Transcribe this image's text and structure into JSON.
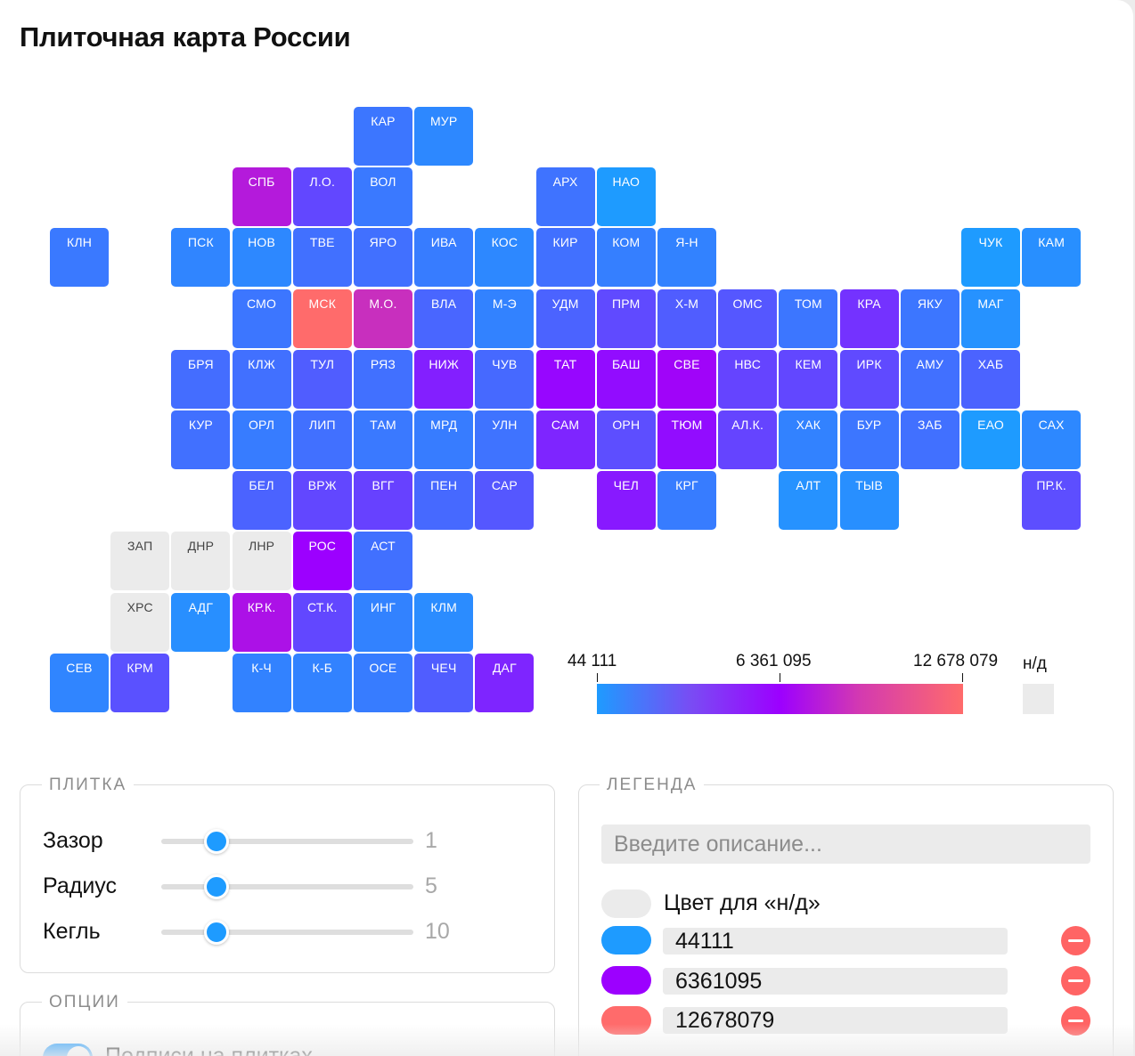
{
  "title": "Плиточная карта России",
  "scale": {
    "min_label": "44 111",
    "mid_label": "6 361 095",
    "max_label": "12 678 079",
    "nd_label": "н/д"
  },
  "colors": {
    "low": "#1e9bff",
    "mid": "#9c00ff",
    "high": "#ff6b6b",
    "nd": "#ebebeb"
  },
  "tiles": [
    {
      "label": "КАР",
      "col": 5,
      "row": 0,
      "t": 0.12
    },
    {
      "label": "МУР",
      "col": 6,
      "row": 0,
      "t": 0.06
    },
    {
      "label": "СПБ",
      "col": 3,
      "row": 1,
      "t": 0.62
    },
    {
      "label": "Л.О.",
      "col": 4,
      "row": 1,
      "t": 0.27
    },
    {
      "label": "ВОЛ",
      "col": 5,
      "row": 1,
      "t": 0.11
    },
    {
      "label": "АРХ",
      "col": 8,
      "row": 1,
      "t": 0.13
    },
    {
      "label": "НАО",
      "col": 9,
      "row": 1,
      "t": 0.0
    },
    {
      "label": "КЛН",
      "col": 0,
      "row": 2,
      "t": 0.11
    },
    {
      "label": "ПСК",
      "col": 2,
      "row": 2,
      "t": 0.07
    },
    {
      "label": "НОВ",
      "col": 3,
      "row": 2,
      "t": 0.06
    },
    {
      "label": "ТВЕ",
      "col": 4,
      "row": 2,
      "t": 0.14
    },
    {
      "label": "ЯРО",
      "col": 5,
      "row": 2,
      "t": 0.14
    },
    {
      "label": "ИВА",
      "col": 6,
      "row": 2,
      "t": 0.1
    },
    {
      "label": "КОС",
      "col": 7,
      "row": 2,
      "t": 0.06
    },
    {
      "label": "КИР",
      "col": 8,
      "row": 2,
      "t": 0.14
    },
    {
      "label": "КОМ",
      "col": 9,
      "row": 2,
      "t": 0.09
    },
    {
      "label": "Я-Н",
      "col": 10,
      "row": 2,
      "t": 0.08
    },
    {
      "label": "ЧУК",
      "col": 15,
      "row": 2,
      "t": 0.0
    },
    {
      "label": "КАМ",
      "col": 16,
      "row": 2,
      "t": 0.04
    },
    {
      "label": "СМО",
      "col": 3,
      "row": 3,
      "t": 0.12
    },
    {
      "label": "МСК",
      "col": 4,
      "row": 3,
      "t": 1.0
    },
    {
      "label": "М.О.",
      "col": 5,
      "row": 3,
      "t": 0.72
    },
    {
      "label": "ВЛА",
      "col": 6,
      "row": 3,
      "t": 0.17
    },
    {
      "label": "М-Э",
      "col": 7,
      "row": 3,
      "t": 0.08
    },
    {
      "label": "УДМ",
      "col": 8,
      "row": 3,
      "t": 0.18
    },
    {
      "label": "ПРМ",
      "col": 9,
      "row": 3,
      "t": 0.26
    },
    {
      "label": "Х-М",
      "col": 10,
      "row": 3,
      "t": 0.2
    },
    {
      "label": "ОМС",
      "col": 11,
      "row": 3,
      "t": 0.22
    },
    {
      "label": "ТОМ",
      "col": 12,
      "row": 3,
      "t": 0.12
    },
    {
      "label": "КРА",
      "col": 13,
      "row": 3,
      "t": 0.34
    },
    {
      "label": "ЯКУ",
      "col": 14,
      "row": 3,
      "t": 0.12
    },
    {
      "label": "МАГ",
      "col": 15,
      "row": 3,
      "t": 0.03
    },
    {
      "label": "БРЯ",
      "col": 2,
      "row": 4,
      "t": 0.15
    },
    {
      "label": "КЛЖ",
      "col": 3,
      "row": 4,
      "t": 0.14
    },
    {
      "label": "ТУЛ",
      "col": 4,
      "row": 4,
      "t": 0.2
    },
    {
      "label": "РЯЗ",
      "col": 5,
      "row": 4,
      "t": 0.14
    },
    {
      "label": "НИЖ",
      "col": 6,
      "row": 4,
      "t": 0.4
    },
    {
      "label": "ЧУВ",
      "col": 7,
      "row": 4,
      "t": 0.16
    },
    {
      "label": "ТАТ",
      "col": 8,
      "row": 4,
      "t": 0.48
    },
    {
      "label": "БАШ",
      "col": 9,
      "row": 4,
      "t": 0.46
    },
    {
      "label": "СВЕ",
      "col": 10,
      "row": 4,
      "t": 0.52
    },
    {
      "label": "НВС",
      "col": 11,
      "row": 4,
      "t": 0.28
    },
    {
      "label": "КЕМ",
      "col": 12,
      "row": 4,
      "t": 0.27
    },
    {
      "label": "ИРК",
      "col": 13,
      "row": 4,
      "t": 0.26
    },
    {
      "label": "АМУ",
      "col": 14,
      "row": 4,
      "t": 0.14
    },
    {
      "label": "ХАБ",
      "col": 15,
      "row": 4,
      "t": 0.18
    },
    {
      "label": "КУР",
      "col": 2,
      "row": 5,
      "t": 0.14
    },
    {
      "label": "ОРЛ",
      "col": 3,
      "row": 5,
      "t": 0.1
    },
    {
      "label": "ЛИП",
      "col": 4,
      "row": 5,
      "t": 0.14
    },
    {
      "label": "ТАМ",
      "col": 5,
      "row": 5,
      "t": 0.11
    },
    {
      "label": "МРД",
      "col": 6,
      "row": 5,
      "t": 0.1
    },
    {
      "label": "УЛН",
      "col": 7,
      "row": 5,
      "t": 0.13
    },
    {
      "label": "САМ",
      "col": 8,
      "row": 5,
      "t": 0.38
    },
    {
      "label": "ОРН",
      "col": 9,
      "row": 5,
      "t": 0.25
    },
    {
      "label": "ТЮМ",
      "col": 10,
      "row": 5,
      "t": 0.46
    },
    {
      "label": "АЛ.К.",
      "col": 11,
      "row": 5,
      "t": 0.28
    },
    {
      "label": "ХАК",
      "col": 12,
      "row": 5,
      "t": 0.08
    },
    {
      "label": "БУР",
      "col": 13,
      "row": 5,
      "t": 0.12
    },
    {
      "label": "ЗАБ",
      "col": 14,
      "row": 5,
      "t": 0.14
    },
    {
      "label": "ЕАО",
      "col": 15,
      "row": 5,
      "t": 0.0
    },
    {
      "label": "САХ",
      "col": 16,
      "row": 5,
      "t": 0.06
    },
    {
      "label": "БЕЛ",
      "col": 3,
      "row": 6,
      "t": 0.18
    },
    {
      "label": "ВРЖ",
      "col": 4,
      "row": 6,
      "t": 0.27
    },
    {
      "label": "ВГГ",
      "col": 5,
      "row": 6,
      "t": 0.29
    },
    {
      "label": "ПЕН",
      "col": 6,
      "row": 6,
      "t": 0.16
    },
    {
      "label": "САР",
      "col": 7,
      "row": 6,
      "t": 0.22
    },
    {
      "label": "ЧЕЛ",
      "col": 9,
      "row": 6,
      "t": 0.42
    },
    {
      "label": "КРГ",
      "col": 10,
      "row": 6,
      "t": 0.1
    },
    {
      "label": "АЛТ",
      "col": 12,
      "row": 6,
      "t": 0.03
    },
    {
      "label": "ТЫВ",
      "col": 13,
      "row": 6,
      "t": 0.04
    },
    {
      "label": "ПР.К.",
      "col": 16,
      "row": 6,
      "t": 0.25
    },
    {
      "label": "ЗАП",
      "col": 1,
      "row": 7,
      "t": null
    },
    {
      "label": "ДНР",
      "col": 2,
      "row": 7,
      "t": null
    },
    {
      "label": "ЛНР",
      "col": 3,
      "row": 7,
      "t": null
    },
    {
      "label": "РОС",
      "col": 4,
      "row": 7,
      "t": 0.5
    },
    {
      "label": "АСТ",
      "col": 5,
      "row": 7,
      "t": 0.14
    },
    {
      "label": "ХРС",
      "col": 1,
      "row": 8,
      "t": null
    },
    {
      "label": "АДГ",
      "col": 2,
      "row": 8,
      "t": 0.04
    },
    {
      "label": "КР.К.",
      "col": 3,
      "row": 8,
      "t": 0.58
    },
    {
      "label": "СТ.К.",
      "col": 4,
      "row": 8,
      "t": 0.27
    },
    {
      "label": "ИНГ",
      "col": 5,
      "row": 8,
      "t": 0.08
    },
    {
      "label": "КЛМ",
      "col": 6,
      "row": 8,
      "t": 0.05
    },
    {
      "label": "СЕВ",
      "col": 0,
      "row": 9,
      "t": 0.07
    },
    {
      "label": "КРМ",
      "col": 1,
      "row": 9,
      "t": 0.24
    },
    {
      "label": "К-Ч",
      "col": 3,
      "row": 9,
      "t": 0.08
    },
    {
      "label": "К-Б",
      "col": 4,
      "row": 9,
      "t": 0.08
    },
    {
      "label": "ОСЕ",
      "col": 5,
      "row": 9,
      "t": 0.1
    },
    {
      "label": "ЧЕЧ",
      "col": 6,
      "row": 9,
      "t": 0.2
    },
    {
      "label": "ДАГ",
      "col": 7,
      "row": 9,
      "t": 0.38
    }
  ],
  "tile_panel": {
    "legend": "ПЛИТКА",
    "sliders": [
      {
        "label": "Зазор",
        "value": "1",
        "fraction": 0.22
      },
      {
        "label": "Радиус",
        "value": "5",
        "fraction": 0.22
      },
      {
        "label": "Кегль",
        "value": "10",
        "fraction": 0.22
      }
    ]
  },
  "options_panel": {
    "legend": "ОПЦИИ",
    "toggle_label": "Подписи на плитках"
  },
  "legend_panel": {
    "legend": "ЛЕГЕНДА",
    "description_placeholder": "Введите описание...",
    "nd_color_label": "Цвет для «н/д»",
    "stops": [
      {
        "value": "44111",
        "color": "#1e9bff"
      },
      {
        "value": "6361095",
        "color": "#9c00ff"
      },
      {
        "value": "12678079",
        "color": "#ff6b6b"
      }
    ]
  }
}
